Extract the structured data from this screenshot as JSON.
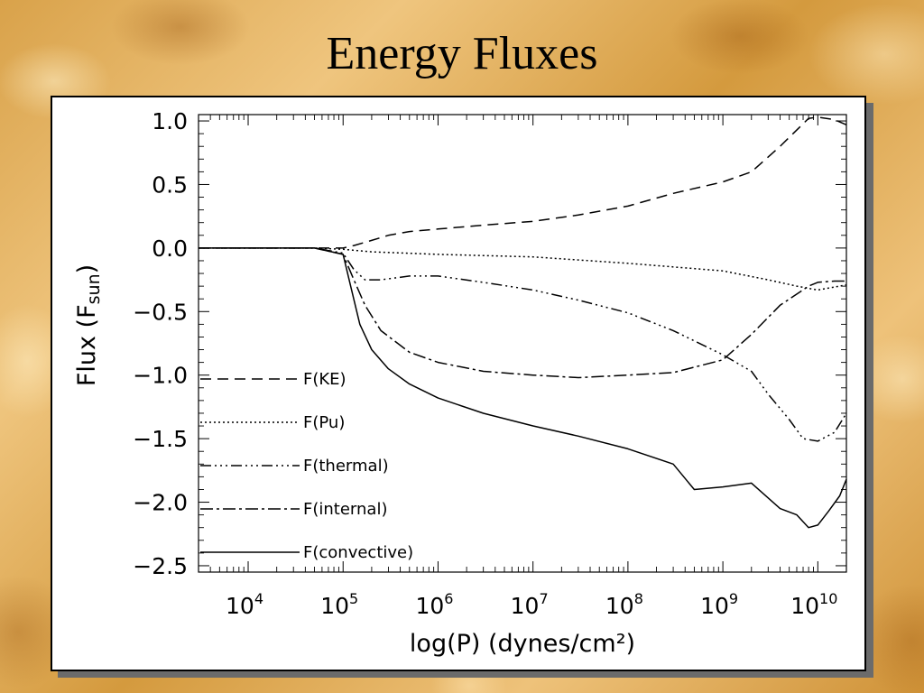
{
  "slide": {
    "title": "Energy Fluxes"
  },
  "chart_data": {
    "type": "line",
    "title": "",
    "xlabel": "log(P) (dynes/cm²)",
    "ylabel": "Flux (F_sun)",
    "ylabel_main": "Flux (F",
    "ylabel_sub": "sun",
    "ylabel_close": ")",
    "x_scale": "log",
    "xlim": [
      3000,
      20000000000
    ],
    "ylim": [
      -2.55,
      1.05
    ],
    "x_ticks": [
      {
        "value": 10000,
        "base": "10",
        "exp": "4"
      },
      {
        "value": 100000,
        "base": "10",
        "exp": "5"
      },
      {
        "value": 1000000,
        "base": "10",
        "exp": "6"
      },
      {
        "value": 10000000,
        "base": "10",
        "exp": "7"
      },
      {
        "value": 100000000,
        "base": "10",
        "exp": "8"
      },
      {
        "value": 1000000000,
        "base": "10",
        "exp": "9"
      },
      {
        "value": 10000000000,
        "base": "10",
        "exp": "10"
      }
    ],
    "y_ticks": [
      {
        "value": 1.0,
        "label": "1.0"
      },
      {
        "value": 0.5,
        "label": "0.5"
      },
      {
        "value": 0.0,
        "label": "0.0"
      },
      {
        "value": -0.5,
        "label": "−0.5"
      },
      {
        "value": -1.0,
        "label": "−1.0"
      },
      {
        "value": -1.5,
        "label": "−1.5"
      },
      {
        "value": -2.0,
        "label": "−2.0"
      },
      {
        "value": -2.5,
        "label": "−2.5"
      }
    ],
    "grid": false,
    "legend_position": "left-bottom",
    "series": [
      {
        "name": "F(KE)",
        "dash": "12,7",
        "x": [
          3000,
          50000,
          100000,
          130000,
          200000,
          300000,
          500000,
          1000000,
          3000000,
          10000000,
          30000000,
          100000000,
          300000000,
          1000000000,
          2000000000,
          4000000000,
          8000000000,
          10000000000,
          15000000000,
          20000000000
        ],
        "y": [
          0,
          0,
          0.0,
          0.02,
          0.06,
          0.1,
          0.13,
          0.15,
          0.18,
          0.21,
          0.26,
          0.33,
          0.43,
          0.52,
          0.6,
          0.8,
          1.02,
          1.03,
          1.01,
          0.97
        ]
      },
      {
        "name": "F(Pu)",
        "dash": "2,3",
        "x": [
          3000,
          50000,
          100000,
          200000,
          1000000,
          10000000,
          100000000,
          1000000000,
          3000000000,
          6000000000,
          10000000000,
          20000000000
        ],
        "y": [
          0,
          0,
          -0.01,
          -0.03,
          -0.05,
          -0.07,
          -0.12,
          -0.18,
          -0.25,
          -0.3,
          -0.33,
          -0.29
        ]
      },
      {
        "name": "F(thermal)",
        "dash": "12,4,2,4,2,4,2,4",
        "x": [
          3000,
          50000,
          100000,
          130000,
          170000,
          250000,
          500000,
          1000000,
          3000000,
          10000000,
          30000000,
          100000000,
          300000000,
          1000000000,
          2000000000,
          3000000000,
          5000000000,
          7000000000,
          10000000000,
          15000000000,
          20000000000
        ],
        "y": [
          0,
          0,
          -0.04,
          -0.17,
          -0.25,
          -0.25,
          -0.22,
          -0.22,
          -0.27,
          -0.33,
          -0.41,
          -0.51,
          -0.65,
          -0.84,
          -0.97,
          -1.15,
          -1.35,
          -1.5,
          -1.52,
          -1.45,
          -1.3
        ]
      },
      {
        "name": "F(internal)",
        "dash": "14,4,3,4",
        "x": [
          3000,
          50000,
          100000,
          130000,
          170000,
          250000,
          500000,
          1000000,
          3000000,
          10000000,
          30000000,
          100000000,
          300000000,
          1000000000,
          2000000000,
          4000000000,
          8000000000,
          10000000000,
          15000000000,
          20000000000
        ],
        "y": [
          0,
          0,
          -0.05,
          -0.25,
          -0.45,
          -0.65,
          -0.82,
          -0.9,
          -0.97,
          -1.0,
          -1.02,
          -1.0,
          -0.98,
          -0.88,
          -0.68,
          -0.45,
          -0.3,
          -0.27,
          -0.26,
          -0.26
        ]
      },
      {
        "name": "F(convective)",
        "dash": "",
        "x": [
          3000,
          50000,
          100000,
          120000,
          150000,
          200000,
          300000,
          500000,
          1000000,
          3000000,
          10000000,
          30000000,
          100000000,
          300000000,
          500000000,
          1000000000,
          2000000000,
          4000000000,
          6000000000,
          8000000000,
          10000000000,
          13000000000,
          17000000000,
          20000000000
        ],
        "y": [
          0,
          0,
          -0.05,
          -0.3,
          -0.6,
          -0.8,
          -0.95,
          -1.07,
          -1.18,
          -1.3,
          -1.4,
          -1.48,
          -1.58,
          -1.7,
          -1.9,
          -1.88,
          -1.85,
          -2.05,
          -2.1,
          -2.2,
          -2.18,
          -2.07,
          -1.95,
          -1.82
        ]
      }
    ]
  }
}
